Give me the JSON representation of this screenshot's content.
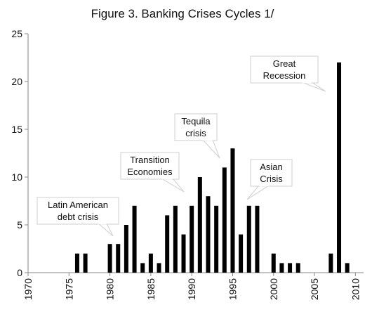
{
  "chart_data": {
    "type": "bar",
    "title": "Figure 3. Banking Crises Cycles  1/",
    "xlabel": "",
    "ylabel": "",
    "xlim": [
      1970,
      2011
    ],
    "ylim": [
      0,
      25
    ],
    "x_ticks": [
      "1970",
      "1975",
      "1980",
      "1985",
      "1990",
      "1995",
      "2000",
      "2005",
      "2010"
    ],
    "y_ticks": [
      "0",
      "5",
      "10",
      "15",
      "20",
      "25"
    ],
    "grid": false,
    "bar_color": "#000000",
    "x": [
      1976,
      1977,
      1980,
      1981,
      1982,
      1983,
      1984,
      1985,
      1986,
      1987,
      1988,
      1989,
      1990,
      1991,
      1992,
      1993,
      1994,
      1995,
      1996,
      1997,
      1998,
      2000,
      2001,
      2002,
      2003,
      2007,
      2008,
      2009
    ],
    "values": [
      2,
      2,
      3,
      3,
      5,
      7,
      1,
      2,
      1,
      6,
      7,
      4,
      7,
      10,
      8,
      7,
      11,
      13,
      4,
      7,
      7,
      2,
      1,
      1,
      1,
      2,
      22,
      1
    ],
    "annotations": [
      {
        "lines": [
          "Latin American",
          "debt crisis"
        ],
        "name": "latin-american"
      },
      {
        "lines": [
          "Transition",
          "Economies"
        ],
        "name": "transition"
      },
      {
        "lines": [
          "Tequila",
          "crisis"
        ],
        "name": "tequila"
      },
      {
        "lines": [
          "Asian",
          "Crisis"
        ],
        "name": "asian"
      },
      {
        "lines": [
          "Great",
          "Recession"
        ],
        "name": "great-recession"
      }
    ]
  }
}
